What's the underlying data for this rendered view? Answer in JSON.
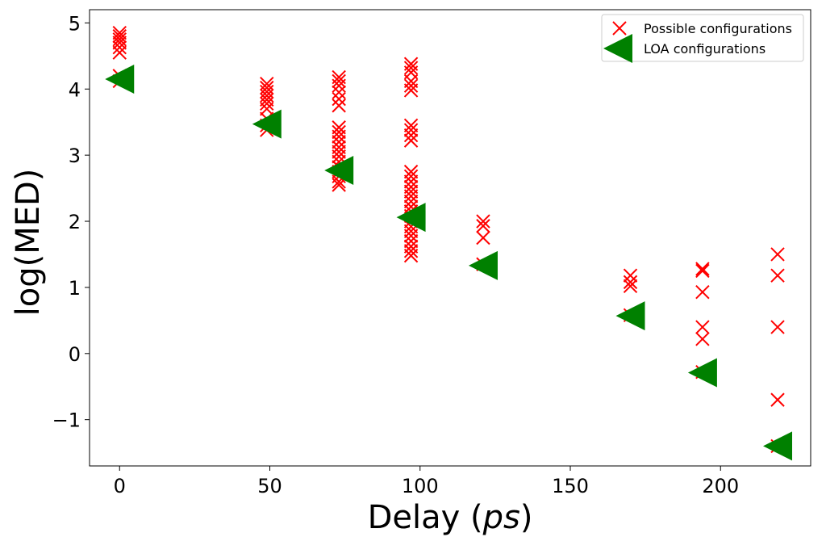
{
  "chart_data": {
    "type": "scatter",
    "xlabel_main": "Delay (",
    "xlabel_italic": "ps",
    "xlabel_end": ")",
    "ylabel": "log(MED)",
    "xlim": [
      -10,
      230
    ],
    "ylim": [
      -1.7,
      5.2
    ],
    "xticks": [
      0,
      50,
      100,
      150,
      200
    ],
    "yticks": [
      -1,
      0,
      1,
      2,
      3,
      4,
      5
    ],
    "ytick_labels": [
      "−1",
      "0",
      "1",
      "2",
      "3",
      "4",
      "5"
    ],
    "legend_position": "top-right",
    "grid": false,
    "series": [
      {
        "name": "Possible configurations",
        "marker": "x",
        "color": "#ff0000",
        "points": [
          [
            0,
            4.85
          ],
          [
            0,
            4.8
          ],
          [
            0,
            4.75
          ],
          [
            0,
            4.7
          ],
          [
            0,
            4.63
          ],
          [
            0,
            4.55
          ],
          [
            0,
            4.2
          ],
          [
            0,
            4.12
          ],
          [
            49,
            4.08
          ],
          [
            49,
            4.02
          ],
          [
            49,
            3.96
          ],
          [
            49,
            3.9
          ],
          [
            49,
            3.84
          ],
          [
            49,
            3.78
          ],
          [
            49,
            3.7
          ],
          [
            49,
            3.55
          ],
          [
            49,
            3.45
          ],
          [
            49,
            3.38
          ],
          [
            73,
            4.18
          ],
          [
            73,
            4.12
          ],
          [
            73,
            4.05
          ],
          [
            73,
            3.95
          ],
          [
            73,
            3.85
          ],
          [
            73,
            3.75
          ],
          [
            73,
            3.42
          ],
          [
            73,
            3.35
          ],
          [
            73,
            3.28
          ],
          [
            73,
            3.2
          ],
          [
            73,
            3.12
          ],
          [
            73,
            3.05
          ],
          [
            73,
            2.98
          ],
          [
            73,
            2.9
          ],
          [
            73,
            2.82
          ],
          [
            73,
            2.75
          ],
          [
            73,
            2.68
          ],
          [
            73,
            2.6
          ],
          [
            73,
            2.55
          ],
          [
            97,
            4.38
          ],
          [
            97,
            4.32
          ],
          [
            97,
            4.25
          ],
          [
            97,
            4.12
          ],
          [
            97,
            4.05
          ],
          [
            97,
            3.98
          ],
          [
            97,
            3.45
          ],
          [
            97,
            3.38
          ],
          [
            97,
            3.3
          ],
          [
            97,
            3.22
          ],
          [
            97,
            2.75
          ],
          [
            97,
            2.68
          ],
          [
            97,
            2.6
          ],
          [
            97,
            2.52
          ],
          [
            97,
            2.45
          ],
          [
            97,
            2.38
          ],
          [
            97,
            2.3
          ],
          [
            97,
            2.22
          ],
          [
            97,
            2.15
          ],
          [
            97,
            2.08
          ],
          [
            97,
            2.0
          ],
          [
            97,
            1.92
          ],
          [
            97,
            1.85
          ],
          [
            97,
            1.78
          ],
          [
            97,
            1.7
          ],
          [
            97,
            1.62
          ],
          [
            97,
            1.55
          ],
          [
            97,
            1.48
          ],
          [
            121,
            2.0
          ],
          [
            121,
            1.93
          ],
          [
            121,
            1.75
          ],
          [
            121,
            1.35
          ],
          [
            170,
            1.18
          ],
          [
            170,
            1.08
          ],
          [
            170,
            1.02
          ],
          [
            170,
            0.58
          ],
          [
            194,
            1.28
          ],
          [
            194,
            1.25
          ],
          [
            194,
            0.93
          ],
          [
            194,
            0.4
          ],
          [
            194,
            0.22
          ],
          [
            194,
            -0.28
          ],
          [
            219,
            1.5
          ],
          [
            219,
            1.18
          ],
          [
            219,
            0.4
          ],
          [
            219,
            -0.7
          ],
          [
            219,
            -1.4
          ]
        ]
      },
      {
        "name": "LOA configurations",
        "marker": "<",
        "color": "#008000",
        "points": [
          [
            0,
            4.15
          ],
          [
            49,
            3.47
          ],
          [
            73,
            2.77
          ],
          [
            97,
            2.06
          ],
          [
            121,
            1.33
          ],
          [
            170,
            0.57
          ],
          [
            194,
            -0.29
          ],
          [
            219,
            -1.4
          ]
        ]
      }
    ]
  }
}
